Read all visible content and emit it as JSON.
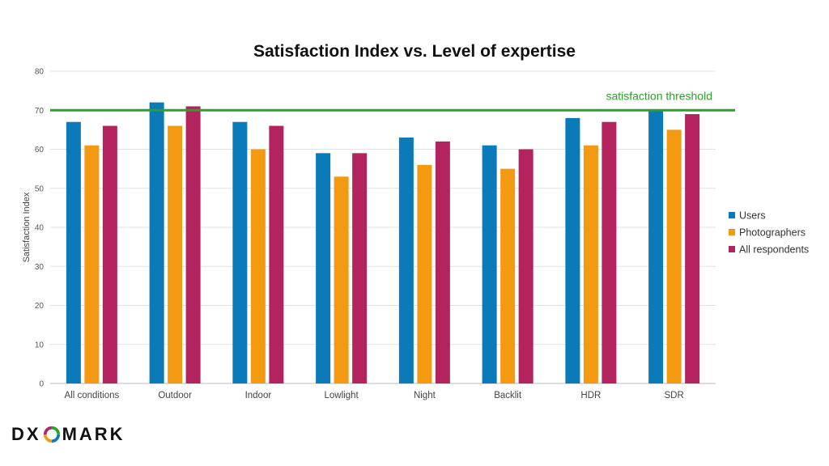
{
  "chart_data": {
    "type": "bar",
    "title": "Satisfaction Index vs. Level of expertise",
    "ylabel": "Satisfaction Index",
    "xlabel": "",
    "ylim": [
      0,
      80
    ],
    "yticks": [
      0,
      10,
      20,
      30,
      40,
      50,
      60,
      70,
      80
    ],
    "grid": true,
    "legend_position": "right",
    "categories": [
      "All conditions",
      "Outdoor",
      "Indoor",
      "Lowlight",
      "Night",
      "Backlit",
      "HDR",
      "SDR"
    ],
    "series": [
      {
        "name": "Users",
        "color": "#0a7ab8",
        "values": [
          67,
          72,
          67,
          59,
          63,
          61,
          68,
          70
        ]
      },
      {
        "name": "Photographers",
        "color": "#f39a12",
        "values": [
          61,
          66,
          60,
          53,
          56,
          55,
          61,
          65
        ]
      },
      {
        "name": "All respondents",
        "color": "#b3245f",
        "values": [
          66,
          71,
          66,
          59,
          62,
          60,
          67,
          69
        ]
      }
    ],
    "threshold": {
      "value": 70,
      "label": "satisfaction threshold",
      "color": "#2aa12a"
    }
  },
  "logo": {
    "text": "DXOMARK"
  }
}
